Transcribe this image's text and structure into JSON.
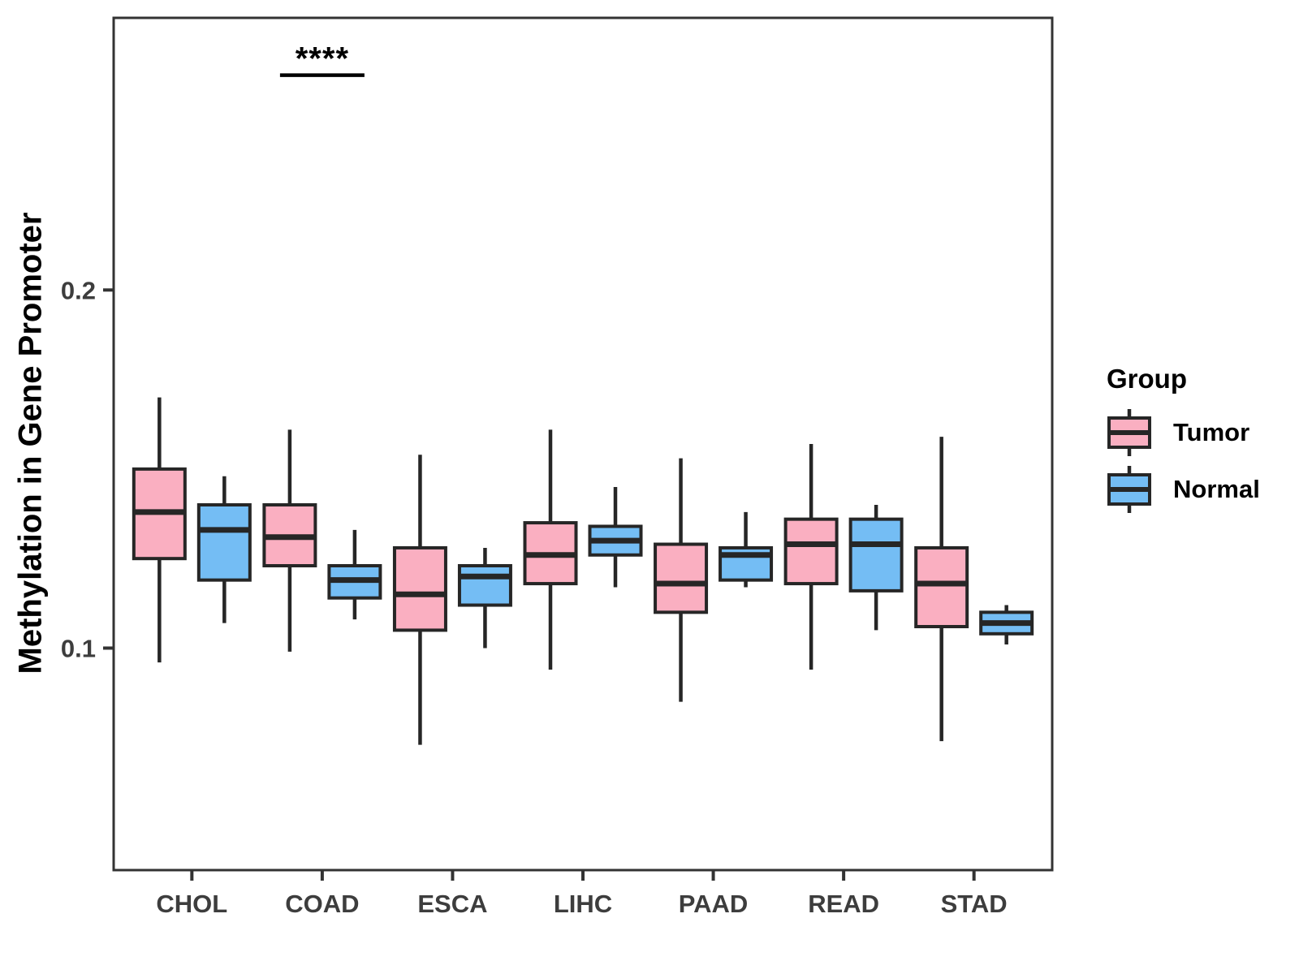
{
  "figure": {
    "legend": {
      "title": "Group",
      "entries": [
        {
          "label": "Tumor",
          "color": "#FAAFC1"
        },
        {
          "label": "Normal",
          "color": "#74BDF4"
        }
      ]
    }
  },
  "chart_data": {
    "type": "boxplot",
    "title": "",
    "xlabel": "",
    "ylabel": "Methylation in Gene Promoter",
    "categories": [
      "CHOL",
      "COAD",
      "ESCA",
      "LIHC",
      "PAAD",
      "READ",
      "STAD"
    ],
    "y_ticks": [
      0.2,
      0.1
    ],
    "ylim": [
      0.038,
      0.276
    ],
    "grid": false,
    "legend_position": "right",
    "legend_title": "Group",
    "series": [
      {
        "name": "Tumor",
        "color": "#FAAFC1",
        "boxes_format": [
          "whisker_low",
          "q1",
          "median",
          "q3",
          "whisker_high"
        ],
        "boxes": [
          [
            0.096,
            0.125,
            0.138,
            0.15,
            0.17
          ],
          [
            0.099,
            0.123,
            0.131,
            0.14,
            0.161
          ],
          [
            0.073,
            0.105,
            0.115,
            0.128,
            0.154
          ],
          [
            0.094,
            0.118,
            0.126,
            0.135,
            0.161
          ],
          [
            0.085,
            0.11,
            0.118,
            0.129,
            0.153
          ],
          [
            0.094,
            0.118,
            0.129,
            0.136,
            0.157
          ],
          [
            0.074,
            0.106,
            0.118,
            0.128,
            0.159
          ]
        ]
      },
      {
        "name": "Normal",
        "color": "#74BDF4",
        "boxes_format": [
          "whisker_low",
          "q1",
          "median",
          "q3",
          "whisker_high"
        ],
        "boxes": [
          [
            0.107,
            0.119,
            0.133,
            0.14,
            0.148
          ],
          [
            0.108,
            0.114,
            0.119,
            0.123,
            0.133
          ],
          [
            0.1,
            0.112,
            0.12,
            0.123,
            0.128
          ],
          [
            0.117,
            0.126,
            0.13,
            0.134,
            0.145
          ],
          [
            0.117,
            0.119,
            0.126,
            0.128,
            0.138
          ],
          [
            0.105,
            0.116,
            0.129,
            0.136,
            0.14
          ],
          [
            0.101,
            0.104,
            0.107,
            0.11,
            0.112
          ]
        ]
      }
    ],
    "annotation": {
      "label": "****",
      "category": "COAD",
      "y": 0.26
    },
    "colors": {
      "box_line": "#262626",
      "panel_border": "#333333",
      "tick_text": "#3d3d3d",
      "annotation": "#000000"
    }
  }
}
